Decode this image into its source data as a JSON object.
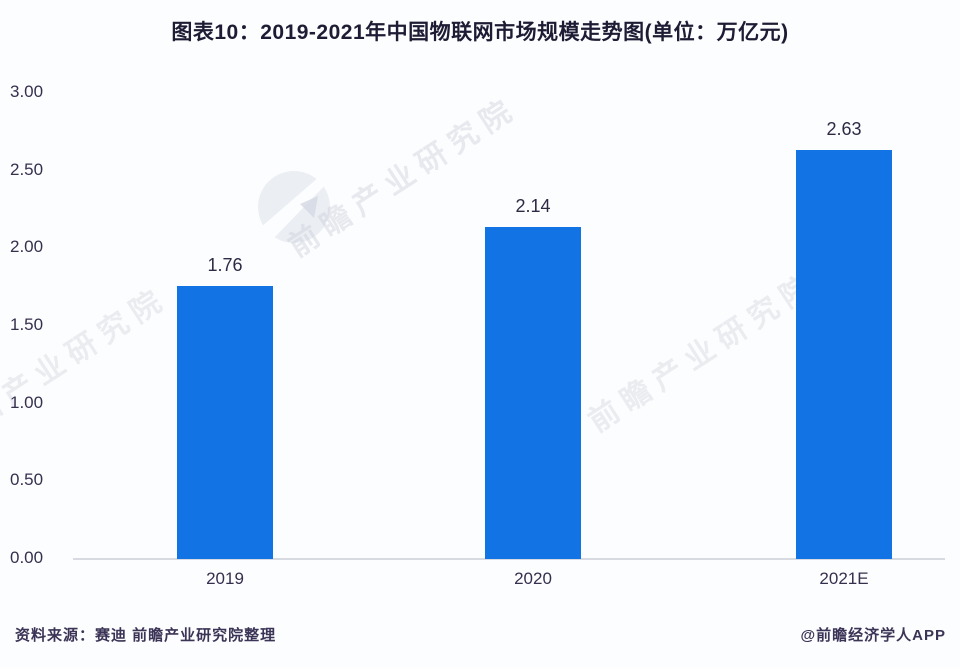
{
  "title": "图表10：2019-2021年中国物联网市场规模走势图(单位：万亿元)",
  "chart_data": {
    "type": "bar",
    "categories": [
      "2019",
      "2020",
      "2021E"
    ],
    "values": [
      1.76,
      2.14,
      2.63
    ],
    "value_labels": [
      "1.76",
      "2.14",
      "2.63"
    ],
    "title": "图表10：2019-2021年中国物联网市场规模走势图(单位：万亿元)",
    "unit": "万亿元",
    "xlabel": "",
    "ylabel": "",
    "ylim": [
      0,
      3.0
    ],
    "y_ticks": [
      "3.00",
      "2.50",
      "2.00",
      "1.50",
      "1.00",
      "0.50",
      "0.00"
    ],
    "grid": false,
    "legend": "none"
  },
  "footer": {
    "source": "资料来源：赛迪 前瞻产业研究院整理",
    "credit": "@前瞻经济学人APP"
  },
  "watermark": {
    "text": "前瞻产业研究院",
    "logo": "qianzhan-logo"
  },
  "colors": {
    "bar": "#1274e4",
    "title_text": "#1d1c34",
    "tick_text": "#36304f",
    "value_text": "#2e2a45",
    "axis_line": "#d8dae2",
    "footer_text": "#3b3456",
    "watermark_text": "#c9cdd9",
    "background": "#fcfdfe"
  }
}
